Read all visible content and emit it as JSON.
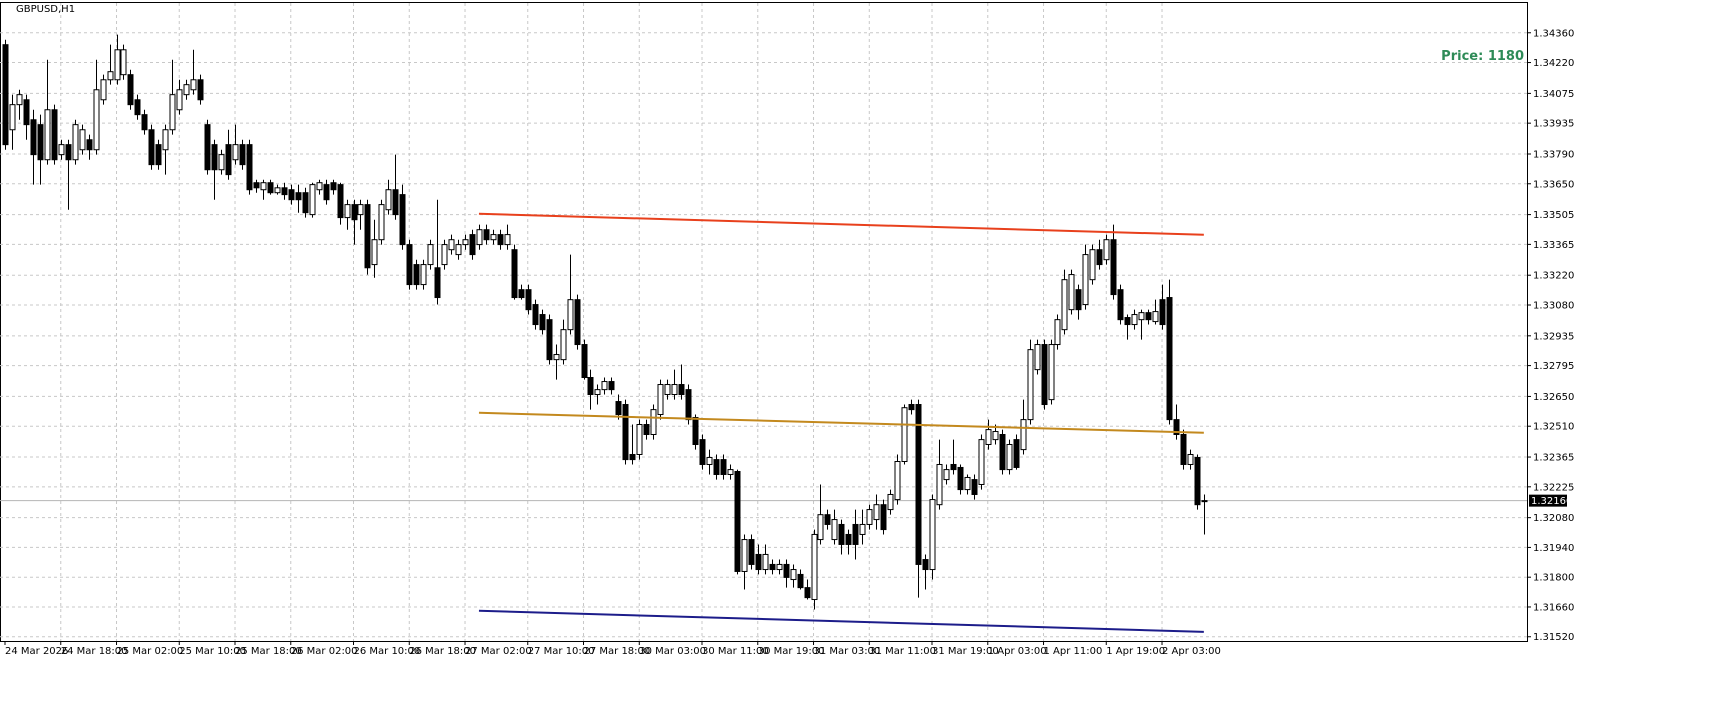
{
  "chart_data": {
    "type": "candlestick",
    "title": "GBPUSD,H1",
    "annotation": "Price: 1180",
    "ylim": [
      1.315,
      1.345
    ],
    "yticks": [
      {
        "value": 1.3436,
        "label": "1.34360"
      },
      {
        "value": 1.3422,
        "label": "1.34220"
      },
      1.34075,
      1.33935,
      {
        "value": 1.3379,
        "label": "1.33790"
      },
      {
        "value": 1.3365,
        "label": "1.33650"
      },
      1.33505,
      1.33365,
      {
        "value": 1.3322,
        "label": "1.33220"
      },
      {
        "value": 1.3308,
        "label": "1.33080"
      },
      1.32935,
      1.32795,
      {
        "value": 1.3265,
        "label": "1.32650"
      },
      {
        "value": 1.3251,
        "label": "1.32510"
      },
      1.32365,
      1.32225,
      {
        "value": 1.3208,
        "label": "1.32080"
      },
      {
        "value": 1.3194,
        "label": "1.31940"
      },
      {
        "value": 1.318,
        "label": "1.31800"
      },
      {
        "value": 1.3166,
        "label": "1.31660"
      },
      {
        "value": 1.3152,
        "label": "1.31520"
      }
    ],
    "grid": true,
    "last_price": {
      "value": 1.3216,
      "label": "1.32160"
    },
    "up_color": "#ffffff",
    "down_color": "#000000",
    "categories": [
      "24 Mar 2026",
      null,
      null,
      null,
      null,
      null,
      null,
      null,
      "24 Mar 18:00",
      null,
      null,
      null,
      null,
      null,
      null,
      null,
      "25 Mar 02:00",
      null,
      null,
      null,
      null,
      null,
      null,
      null,
      null,
      "25 Mar 10:00",
      null,
      null,
      null,
      null,
      null,
      null,
      null,
      "25 Mar 18:00",
      null,
      null,
      null,
      null,
      null,
      null,
      null,
      "26 Mar 02:00",
      null,
      null,
      null,
      null,
      null,
      null,
      null,
      null,
      "26 Mar 10:00",
      null,
      null,
      null,
      null,
      null,
      null,
      null,
      "26 Mar 18:00",
      null,
      null,
      null,
      null,
      null,
      null,
      null,
      "27 Mar 02:00",
      null,
      null,
      null,
      null,
      null,
      null,
      null,
      null,
      "27 Mar 10:00",
      null,
      null,
      null,
      null,
      null,
      null,
      null,
      "27 Mar 18:00",
      null,
      null,
      null,
      null,
      null,
      null,
      null,
      "30 Mar 03:00",
      null,
      null,
      null,
      null,
      null,
      null,
      null,
      null,
      "30 Mar 11:00",
      null,
      null,
      null,
      null,
      null,
      null,
      null,
      "30 Mar 19:00",
      null,
      null,
      null,
      null,
      null,
      null,
      null,
      "31 Mar 03:00",
      null,
      null,
      null,
      null,
      null,
      null,
      null,
      "31 Mar 11:00",
      null,
      null,
      null,
      null,
      null,
      null,
      null,
      null,
      "31 Mar 19:00",
      null,
      null,
      null,
      null,
      null,
      null,
      null,
      "1 Apr 03:00",
      null,
      null,
      null,
      null,
      null,
      null,
      null,
      "1 Apr 11:00",
      null,
      null,
      null,
      null,
      null,
      null,
      null,
      null,
      "1 Apr 19:00",
      null,
      null,
      null,
      null,
      null,
      null,
      null,
      "2 Apr 03:00",
      null,
      null,
      null,
      null,
      null,
      null
    ],
    "candles": [
      [
        1.34304,
        1.34327,
        1.3381,
        1.33834
      ],
      [
        1.33904,
        1.34069,
        1.3381,
        1.34022
      ],
      [
        1.34022,
        1.34092,
        1.33951,
        1.34069
      ],
      [
        1.34045,
        1.34069,
        1.33857,
        1.33928
      ],
      [
        1.33951,
        1.33998,
        1.33646,
        1.33787
      ],
      [
        1.33928,
        1.33975,
        1.33646,
        1.33763
      ],
      [
        1.33763,
        1.34233,
        1.3374,
        1.33998
      ],
      [
        1.33998,
        1.34022,
        1.3374,
        1.33763
      ],
      [
        1.33787,
        1.33857,
        1.33763,
        1.33834
      ],
      [
        1.33834,
        1.33857,
        1.33528,
        1.33763
      ],
      [
        1.33763,
        1.33951,
        1.3374,
        1.33928
      ],
      [
        1.3381,
        1.33928,
        1.33787,
        1.33904
      ],
      [
        1.33857,
        1.33881,
        1.33763,
        1.3381
      ],
      [
        1.3381,
        1.34233,
        1.33787,
        1.34092
      ],
      [
        1.34045,
        1.34163,
        1.34022,
        1.34139
      ],
      [
        1.34139,
        1.34304,
        1.34116,
        1.34177
      ],
      [
        1.34139,
        1.34351,
        1.34116,
        1.3428
      ],
      [
        1.34163,
        1.34304,
        1.34139,
        1.3428
      ],
      [
        1.34163,
        1.34186,
        1.33998,
        1.34022
      ],
      [
        1.34045,
        1.34069,
        1.33951,
        1.33975
      ],
      [
        1.33975,
        1.33998,
        1.33881,
        1.33904
      ],
      [
        1.33904,
        1.33928,
        1.33716,
        1.3374
      ],
      [
        1.33834,
        1.33857,
        1.33716,
        1.3374
      ],
      [
        1.3381,
        1.33928,
        1.33693,
        1.33904
      ],
      [
        1.33904,
        1.34233,
        1.33881,
        1.34069
      ],
      [
        1.33998,
        1.34139,
        1.33975,
        1.34092
      ],
      [
        1.34069,
        1.34139,
        1.34045,
        1.34116
      ],
      [
        1.34092,
        1.3428,
        1.34069,
        1.34139
      ],
      [
        1.34139,
        1.34163,
        1.34022,
        1.34045
      ],
      [
        1.33928,
        1.33951,
        1.33693,
        1.33716
      ],
      [
        1.33834,
        1.33857,
        1.33575,
        1.33716
      ],
      [
        1.33716,
        1.3381,
        1.33693,
        1.33787
      ],
      [
        1.33834,
        1.33904,
        1.33669,
        1.33693
      ],
      [
        1.33763,
        1.33928,
        1.3374,
        1.33834
      ],
      [
        1.33834,
        1.33857,
        1.33716,
        1.3374
      ],
      [
        1.33834,
        1.33857,
        1.33599,
        1.33622
      ],
      [
        1.33655,
        1.33669,
        1.33608,
        1.33631
      ],
      [
        1.33622,
        1.33669,
        1.33575,
        1.33655
      ],
      [
        1.33655,
        1.33669,
        1.33599,
        1.33608
      ],
      [
        1.33608,
        1.33646,
        1.33599,
        1.33631
      ],
      [
        1.33631,
        1.33655,
        1.33575,
        1.33599
      ],
      [
        1.33622,
        1.33646,
        1.33552,
        1.33575
      ],
      [
        1.33608,
        1.33646,
        1.33514,
        1.33575
      ],
      [
        1.33608,
        1.33631,
        1.33491,
        1.33514
      ],
      [
        1.33505,
        1.33655,
        1.33491,
        1.33646
      ],
      [
        1.33622,
        1.33669,
        1.33599,
        1.33655
      ],
      [
        1.33646,
        1.33669,
        1.33552,
        1.33575
      ],
      [
        1.33655,
        1.33669,
        1.33599,
        1.33622
      ],
      [
        1.33646,
        1.33655,
        1.33458,
        1.33491
      ],
      [
        1.33491,
        1.33575,
        1.33434,
        1.33552
      ],
      [
        1.33552,
        1.33575,
        1.33364,
        1.33481
      ],
      [
        1.33505,
        1.33575,
        1.33434,
        1.33552
      ],
      [
        1.33552,
        1.33575,
        1.33223,
        1.33255
      ],
      [
        1.3327,
        1.33481,
        1.33208,
        1.33387
      ],
      [
        1.33387,
        1.33575,
        1.33364,
        1.33552
      ],
      [
        1.33528,
        1.33669,
        1.33505,
        1.33622
      ],
      [
        1.33622,
        1.33787,
        1.33481,
        1.33505
      ],
      [
        1.33599,
        1.33646,
        1.3334,
        1.33364
      ],
      [
        1.33364,
        1.33387,
        1.33152,
        1.33176
      ],
      [
        1.3327,
        1.33293,
        1.33152,
        1.33176
      ],
      [
        1.33176,
        1.33293,
        1.33152,
        1.3327
      ],
      [
        1.3327,
        1.33387,
        1.33246,
        1.33364
      ],
      [
        1.33255,
        1.33575,
        1.33082,
        1.33115
      ],
      [
        1.3327,
        1.33387,
        1.33246,
        1.33364
      ],
      [
        1.3334,
        1.33411,
        1.33317,
        1.33387
      ],
      [
        1.33317,
        1.33387,
        1.33293,
        1.33364
      ],
      [
        1.33364,
        1.33411,
        1.3334,
        1.33387
      ],
      [
        1.33411,
        1.33434,
        1.33293,
        1.33317
      ],
      [
        1.33364,
        1.33458,
        1.3334,
        1.33434
      ],
      [
        1.33434,
        1.33458,
        1.33364,
        1.33387
      ],
      [
        1.33387,
        1.33434,
        1.33364,
        1.33411
      ],
      [
        1.33411,
        1.33434,
        1.3334,
        1.33364
      ],
      [
        1.33364,
        1.33458,
        1.3334,
        1.33411
      ],
      [
        1.3334,
        1.33364,
        1.33105,
        1.33115
      ],
      [
        1.33152,
        1.33176,
        1.33105,
        1.33115
      ],
      [
        1.33152,
        1.33176,
        1.33035,
        1.33058
      ],
      [
        1.33082,
        1.33105,
        1.32964,
        1.32988
      ],
      [
        1.33035,
        1.33058,
        1.32941,
        1.32964
      ],
      [
        1.33011,
        1.33035,
        1.328,
        1.32823
      ],
      [
        1.32823,
        1.32894,
        1.32729,
        1.32847
      ],
      [
        1.32823,
        1.33011,
        1.328,
        1.32964
      ],
      [
        1.32964,
        1.33317,
        1.32941,
        1.33105
      ],
      [
        1.33105,
        1.33129,
        1.3287,
        1.32894
      ],
      [
        1.32894,
        1.32917,
        1.32729,
        1.32739
      ],
      [
        1.32739,
        1.32776,
        1.32588,
        1.32659
      ],
      [
        1.32659,
        1.32706,
        1.32612,
        1.32682
      ],
      [
        1.32682,
        1.32739,
        1.32659,
        1.3272
      ],
      [
        1.3272,
        1.32739,
        1.32659,
        1.32682
      ],
      [
        1.32626,
        1.32659,
        1.32541,
        1.32565
      ],
      [
        1.32612,
        1.32635,
        1.3233,
        1.32353
      ],
      [
        1.32377,
        1.32518,
        1.3233,
        1.32353
      ],
      [
        1.32377,
        1.32541,
        1.32353,
        1.32518
      ],
      [
        1.32518,
        1.32541,
        1.32447,
        1.32471
      ],
      [
        1.32471,
        1.32612,
        1.32447,
        1.32588
      ],
      [
        1.32565,
        1.32729,
        1.32541,
        1.32706
      ],
      [
        1.32659,
        1.32729,
        1.32635,
        1.32706
      ],
      [
        1.32659,
        1.32776,
        1.32635,
        1.32706
      ],
      [
        1.32706,
        1.328,
        1.32635,
        1.32659
      ],
      [
        1.32682,
        1.32706,
        1.32518,
        1.32541
      ],
      [
        1.32551,
        1.32565,
        1.324,
        1.32424
      ],
      [
        1.32447,
        1.32471,
        1.32306,
        1.3233
      ],
      [
        1.3233,
        1.324,
        1.32283,
        1.32363
      ],
      [
        1.32353,
        1.32377,
        1.32259,
        1.32283
      ],
      [
        1.32353,
        1.32377,
        1.32259,
        1.32283
      ],
      [
        1.32283,
        1.3233,
        1.32259,
        1.32306
      ],
      [
        1.32297,
        1.32306,
        1.31813,
        1.31827
      ],
      [
        1.31827,
        1.32001,
        1.31742,
        1.31977
      ],
      [
        1.31977,
        1.32001,
        1.31836,
        1.3186
      ],
      [
        1.31907,
        1.31954,
        1.31813,
        1.31836
      ],
      [
        1.31836,
        1.31954,
        1.31813,
        1.31907
      ],
      [
        1.3186,
        1.31883,
        1.31813,
        1.31836
      ],
      [
        1.31836,
        1.31883,
        1.31813,
        1.3186
      ],
      [
        1.3186,
        1.31883,
        1.31751,
        1.31799
      ],
      [
        1.31789,
        1.3186,
        1.31751,
        1.31836
      ],
      [
        1.31813,
        1.31836,
        1.31742,
        1.31751
      ],
      [
        1.31751,
        1.31789,
        1.31695,
        1.31704
      ],
      [
        1.31695,
        1.32024,
        1.31648,
        1.32001
      ],
      [
        1.31977,
        1.32236,
        1.31954,
        1.32094
      ],
      [
        1.32094,
        1.32118,
        1.32024,
        1.32048
      ],
      [
        1.31977,
        1.32118,
        1.31954,
        1.32071
      ],
      [
        1.32048,
        1.32071,
        1.31907,
        1.31954
      ],
      [
        1.32001,
        1.32024,
        1.31907,
        1.31954
      ],
      [
        1.32048,
        1.32118,
        1.31883,
        1.31954
      ],
      [
        1.32001,
        1.32118,
        1.31954,
        1.32048
      ],
      [
        1.32048,
        1.32141,
        1.32024,
        1.32118
      ],
      [
        1.32071,
        1.32189,
        1.32024,
        1.32141
      ],
      [
        1.32141,
        1.32165,
        1.32001,
        1.32024
      ],
      [
        1.32118,
        1.32212,
        1.32094,
        1.32189
      ],
      [
        1.32165,
        1.32377,
        1.32141,
        1.32344
      ],
      [
        1.32344,
        1.32612,
        1.3233,
        1.32597
      ],
      [
        1.32612,
        1.32635,
        1.32565,
        1.32588
      ],
      [
        1.32612,
        1.32635,
        1.31704,
        1.3186
      ],
      [
        1.31883,
        1.31907,
        1.31742,
        1.31836
      ],
      [
        1.31836,
        1.32189,
        1.31789,
        1.32165
      ],
      [
        1.32141,
        1.32447,
        1.32118,
        1.3233
      ],
      [
        1.32259,
        1.3233,
        1.32236,
        1.32306
      ],
      [
        1.3233,
        1.32447,
        1.32283,
        1.32306
      ],
      [
        1.32316,
        1.3233,
        1.32189,
        1.32212
      ],
      [
        1.32212,
        1.32283,
        1.32189,
        1.32269
      ],
      [
        1.32259,
        1.32283,
        1.32165,
        1.32189
      ],
      [
        1.32236,
        1.32471,
        1.32212,
        1.32447
      ],
      [
        1.32424,
        1.32541,
        1.324,
        1.32494
      ],
      [
        1.32447,
        1.32518,
        1.32424,
        1.32485
      ],
      [
        1.32471,
        1.32494,
        1.32283,
        1.32306
      ],
      [
        1.32306,
        1.32447,
        1.32283,
        1.32424
      ],
      [
        1.32447,
        1.32471,
        1.32306,
        1.32316
      ],
      [
        1.324,
        1.32635,
        1.32377,
        1.32541
      ],
      [
        1.32541,
        1.32917,
        1.32518,
        1.3287
      ],
      [
        1.32776,
        1.32917,
        1.32753,
        1.32894
      ],
      [
        1.32894,
        1.32917,
        1.32588,
        1.32612
      ],
      [
        1.32635,
        1.32917,
        1.32612,
        1.32894
      ],
      [
        1.32894,
        1.33035,
        1.3287,
        1.33011
      ],
      [
        1.32964,
        1.33246,
        1.32941,
        1.33199
      ],
      [
        1.33058,
        1.33246,
        1.33035,
        1.33223
      ],
      [
        1.33152,
        1.33176,
        1.33011,
        1.33058
      ],
      [
        1.33082,
        1.33364,
        1.33058,
        1.33317
      ],
      [
        1.33199,
        1.33364,
        1.33176,
        1.3334
      ],
      [
        1.3334,
        1.33387,
        1.33246,
        1.3327
      ],
      [
        1.33293,
        1.33411,
        1.3327,
        1.33387
      ],
      [
        1.33387,
        1.33458,
        1.33105,
        1.33129
      ],
      [
        1.33152,
        1.33176,
        1.32988,
        1.33011
      ],
      [
        1.33021,
        1.33035,
        1.32917,
        1.32988
      ],
      [
        1.32988,
        1.33058,
        1.32964,
        1.33035
      ],
      [
        1.33011,
        1.33058,
        1.32917,
        1.33044
      ],
      [
        1.33044,
        1.33058,
        1.32988,
        1.33011
      ],
      [
        1.33002,
        1.33105,
        1.32988,
        1.33049
      ],
      [
        1.33105,
        1.33176,
        1.32964,
        1.32988
      ],
      [
        1.33115,
        1.33199,
        1.32518,
        1.32541
      ],
      [
        1.32541,
        1.32612,
        1.32447,
        1.32471
      ],
      [
        1.32471,
        1.32494,
        1.32306,
        1.3233
      ],
      [
        1.3233,
        1.324,
        1.32306,
        1.32377
      ],
      [
        1.32363,
        1.32377,
        1.32118,
        1.32141
      ],
      [
        1.3216,
        1.32189,
        1.32001,
        1.3216
      ]
    ],
    "lines": [
      {
        "color": "#e8401c",
        "x": [
          68,
          172
        ],
        "values": [
          1.33509,
          1.3341
        ]
      },
      {
        "color": "#c3891e",
        "x": [
          68,
          172
        ],
        "values": [
          1.32573,
          1.32479
        ]
      },
      {
        "color": "#1c1c8a",
        "x": [
          68,
          172
        ],
        "values": [
          1.31642,
          1.31543
        ]
      }
    ]
  }
}
